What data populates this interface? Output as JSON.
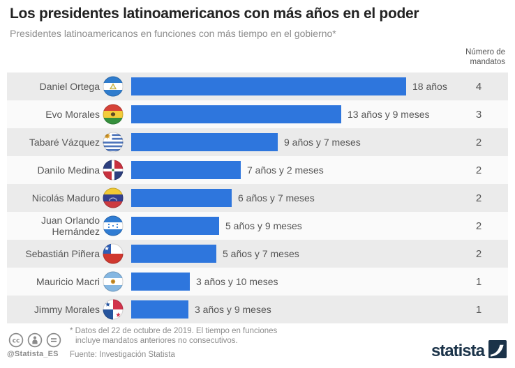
{
  "header": {
    "title": "Los presidentes latinoamericanos con más años en el poder",
    "subtitle": "Presidentes latinoamericanos en funciones con más tiempo en el gobierno*",
    "mandates_column_line1": "Número de",
    "mandates_column_line2": "mandatos"
  },
  "chart_data": {
    "type": "bar",
    "orientation": "horizontal",
    "title": "Los presidentes latinoamericanos con más años en el poder",
    "value_unit": "months_in_office",
    "max_value_months": 216,
    "bar_color": "#2e76dd",
    "row_alt_colors": [
      "#ebebeb",
      "#fafafa"
    ],
    "legend": "none",
    "grid": false,
    "rows": [
      {
        "name": "Daniel Ortega",
        "flag": "nicaragua",
        "duration": "18 años",
        "months": 216,
        "mandates": 4
      },
      {
        "name": "Evo Morales",
        "flag": "bolivia",
        "duration": "13 años y 9 meses",
        "months": 165,
        "mandates": 3
      },
      {
        "name": "Tabaré Vázquez",
        "flag": "uruguay",
        "duration": "9 años y 7 meses",
        "months": 115,
        "mandates": 2
      },
      {
        "name": "Danilo Medina",
        "flag": "dominican-republic",
        "duration": "7 años y 2 meses",
        "months": 86,
        "mandates": 2
      },
      {
        "name": "Nicolás Maduro",
        "flag": "venezuela",
        "duration": "6 años y 7 meses",
        "months": 79,
        "mandates": 2
      },
      {
        "name": "Juan Orlando Hernández",
        "flag": "honduras",
        "duration": "5 años y 9 meses",
        "months": 69,
        "mandates": 2
      },
      {
        "name": "Sebastián Piñera",
        "flag": "chile",
        "duration": "5 años y 7 meses",
        "months": 67,
        "mandates": 2
      },
      {
        "name": "Mauricio Macri",
        "flag": "argentina",
        "duration": "3 años y 10 meses",
        "months": 46,
        "mandates": 1
      },
      {
        "name": "Jimmy Morales",
        "flag": "panama",
        "duration": "3 años y 9 meses",
        "months": 45,
        "mandates": 1
      }
    ]
  },
  "footer": {
    "license_icons": [
      "cc-icon",
      "attribution-icon",
      "no-derivatives-icon"
    ],
    "handle": "@Statista_ES",
    "footnote_line1": "* Datos del 22 de octubre de 2019. El tiempo en funciones",
    "footnote_line2": "incluye mandatos anteriores no consecutivos.",
    "source": "Fuente: Investigación Statista",
    "brand_wordmark": "statista"
  }
}
